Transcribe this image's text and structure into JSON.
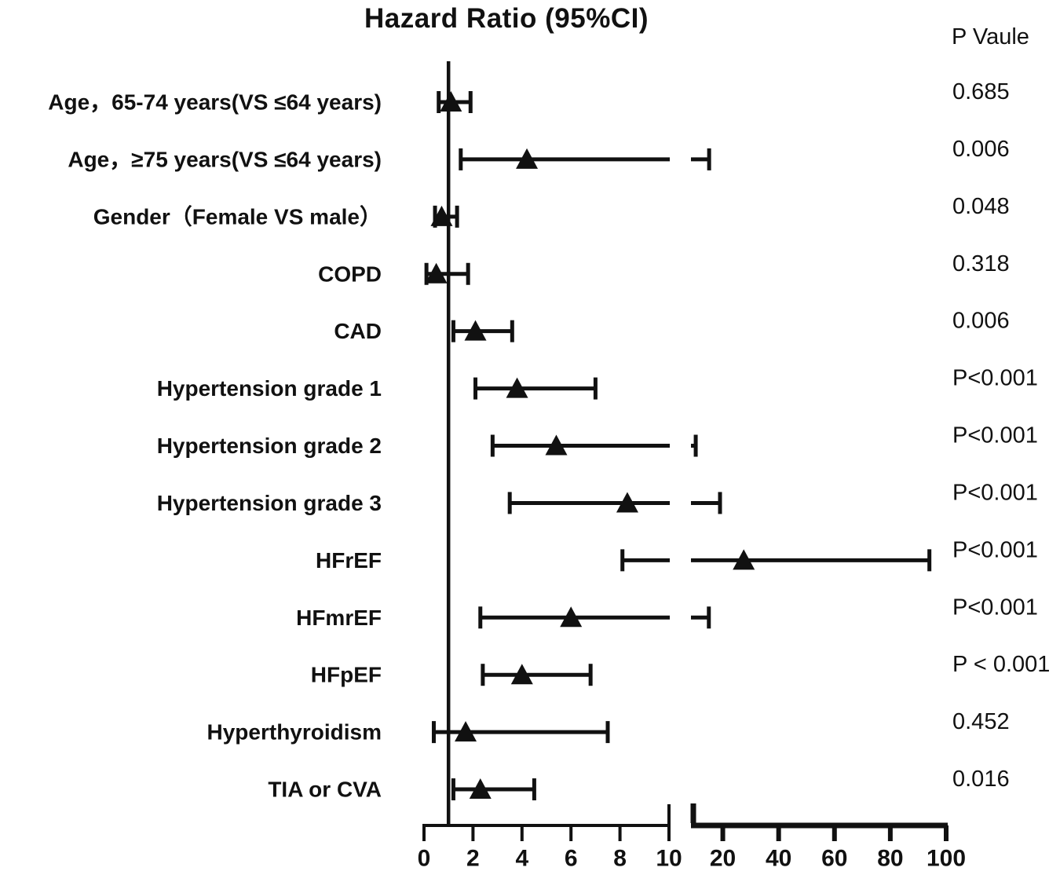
{
  "title": "Hazard Ratio (95%CI)",
  "p_value_header": "P Vaule",
  "chart_data": {
    "type": "forest",
    "title": "Hazard Ratio (95%CI)",
    "p_column_header": "P Vaule",
    "marker": "filled-triangle",
    "color": "#111111",
    "x_axis": {
      "broken": true,
      "reference_line": 1,
      "segments": [
        {
          "range": [
            0,
            10
          ],
          "ticks": [
            0,
            2,
            4,
            6,
            8,
            10
          ]
        },
        {
          "range": [
            10,
            100
          ],
          "ticks": [
            20,
            40,
            60,
            80,
            100
          ]
        }
      ]
    },
    "rows": [
      {
        "label": "Age，65-74 years(VS ≤64 years)",
        "hr": 1.1,
        "ci": [
          0.6,
          1.9
        ],
        "p": "0.685"
      },
      {
        "label": "Age，≥75 years(VS ≤64 years)",
        "hr": 4.2,
        "ci": [
          1.5,
          15.1
        ],
        "p": "0.006"
      },
      {
        "label": "Gender（Female VS male）",
        "hr": 0.72,
        "ci": [
          0.45,
          1.35
        ],
        "p": "0.048"
      },
      {
        "label": "COPD",
        "hr": 0.5,
        "ci": [
          0.1,
          1.8
        ],
        "p": "0.318"
      },
      {
        "label": "CAD",
        "hr": 2.1,
        "ci": [
          1.2,
          3.6
        ],
        "p": "0.006"
      },
      {
        "label": "Hypertension grade 1",
        "hr": 3.8,
        "ci": [
          2.1,
          7.0
        ],
        "p": "P<0.001"
      },
      {
        "label": "Hypertension grade 2",
        "hr": 5.4,
        "ci": [
          2.8,
          10.3
        ],
        "p": "P<0.001"
      },
      {
        "label": "Hypertension grade 3",
        "hr": 8.3,
        "ci": [
          3.5,
          19.0
        ],
        "p": "P<0.001"
      },
      {
        "label": "HFrEF",
        "hr": 27.5,
        "ci": [
          8.1,
          94.0
        ],
        "p": "P<0.001"
      },
      {
        "label": "HFmrEF",
        "hr": 6.0,
        "ci": [
          2.3,
          15.0
        ],
        "p": "P<0.001"
      },
      {
        "label": "HFpEF",
        "hr": 4.0,
        "ci": [
          2.4,
          6.8
        ],
        "p": "P < 0.001"
      },
      {
        "label": "Hyperthyroidism",
        "hr": 1.7,
        "ci": [
          0.4,
          7.5
        ],
        "p": "0.452"
      },
      {
        "label": "TIA or CVA",
        "hr": 2.3,
        "ci": [
          1.2,
          4.5
        ],
        "p": "0.016"
      }
    ]
  }
}
